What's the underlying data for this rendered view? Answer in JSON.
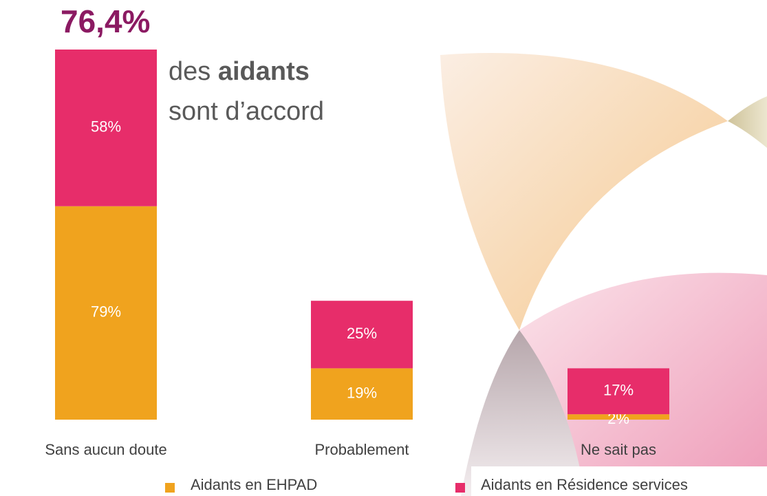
{
  "chart_data": {
    "type": "stacked_bar",
    "headline": "76,4%",
    "subtitle_parts": [
      "des ",
      "aidants",
      "sont d’accord"
    ],
    "categories": [
      "Sans aucun doute",
      "Probablement",
      "Ne sait pas"
    ],
    "series": [
      {
        "name": "Aidants en EHPAD",
        "color": "#f0a31e",
        "values": [
          79,
          19,
          2
        ],
        "value_labels": [
          "79%",
          "19%",
          "2%"
        ]
      },
      {
        "name": "Aidants en Résidence services",
        "color": "#e72d6a",
        "values": [
          58,
          25,
          17
        ],
        "value_labels": [
          "58%",
          "25%",
          "17%"
        ]
      }
    ]
  }
}
